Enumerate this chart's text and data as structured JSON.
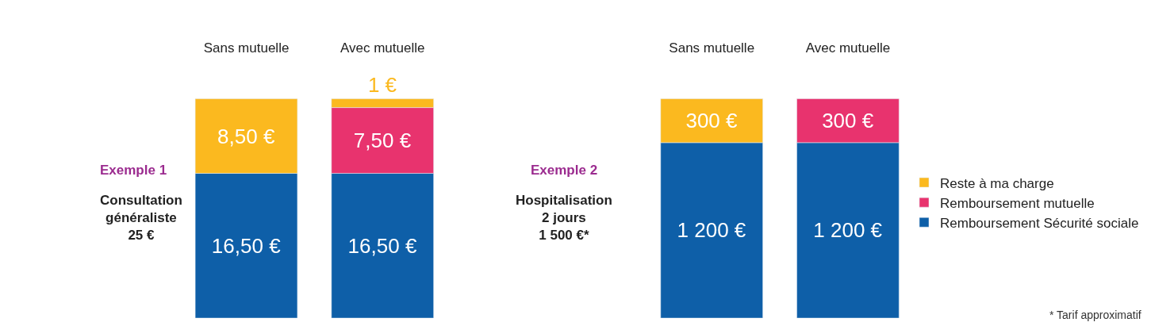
{
  "chart_data": [
    {
      "type": "bar",
      "stacked": true,
      "data_labels": true,
      "categories": [
        "Sans mutuelle",
        "Avec mutuelle"
      ],
      "annotations": [
        "Exemple 1",
        "Consultation\ngénéraliste\n25 €"
      ],
      "series": [
        {
          "color": "#0e5fa8",
          "values": [
            16.5,
            16.5
          ],
          "value_labels": [
            "16,50 €",
            "16,50 €"
          ]
        },
        {
          "color": "#e8336e",
          "values": [
            null,
            7.5
          ],
          "value_labels": [
            null,
            "7,50 €"
          ]
        },
        {
          "color": "#fbb91f",
          "values": [
            8.5,
            1
          ],
          "value_labels": [
            "8,50 €",
            "1 €"
          ]
        }
      ]
    },
    {
      "type": "bar",
      "stacked": true,
      "data_labels": true,
      "legend": "right",
      "categories": [
        "Sans mutuelle",
        "Avec mutuelle"
      ],
      "annotations": [
        "Exemple 2",
        "Hospitalisation\n2 jours\n1 500 €*",
        "* Tarif approximatif"
      ],
      "series": [
        {
          "name": "Remboursement Sécurité sociale",
          "color": "#0e5fa8",
          "values": [
            1200,
            1200
          ],
          "value_labels": [
            "1 200 €",
            "1 200 €"
          ]
        },
        {
          "name": "Remboursement mutuelle",
          "color": "#e8336e",
          "values": [
            null,
            300
          ],
          "value_labels": [
            null,
            "300 €"
          ]
        },
        {
          "name": "Reste à ma charge",
          "color": "#fbb91f",
          "values": [
            300,
            null
          ],
          "value_labels": [
            "300 €",
            null
          ]
        }
      ]
    }
  ]
}
